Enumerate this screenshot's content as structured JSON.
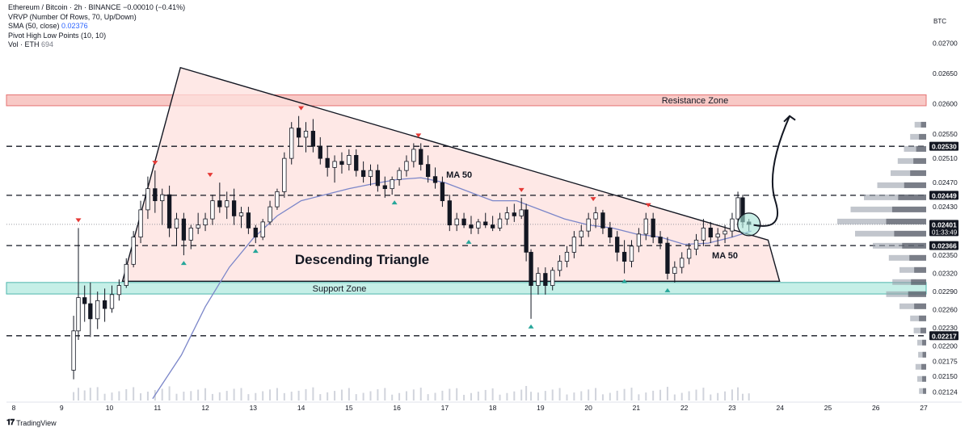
{
  "header": {
    "symbol_line": "Ethereum / Bitcoin · 2h · BINANCE",
    "change": "−0.00010 (−0.41%)",
    "indicators": [
      {
        "label": "VRVP (Number Of Rows, 70, Up/Down)",
        "value": ""
      },
      {
        "label": "SMA (50, close)",
        "value": "0.02376"
      },
      {
        "label": "Pivot High Low Points (10, 10)",
        "value": ""
      },
      {
        "label": "Vol · ETH",
        "value": "694"
      }
    ]
  },
  "currency_label": "BTC",
  "branding": "TradingView",
  "colors": {
    "up": "#131722",
    "down": "#131722",
    "triangle_fill": "#fde0de",
    "resistance_fill": "#f8c9c6",
    "support_fill": "#c5efe7",
    "ma_line": "#7b86c9",
    "pivot_high": "#e53935",
    "pivot_low": "#26a69a"
  },
  "chart_data": {
    "type": "candlestick",
    "title": "",
    "x_axis": {
      "ticks": [
        "8",
        "9",
        "10",
        "11",
        "12",
        "13",
        "14",
        "15",
        "16",
        "17",
        "18",
        "19",
        "20",
        "21",
        "22",
        "23",
        "24",
        "25",
        "26",
        "27"
      ],
      "range": [
        8,
        27
      ]
    },
    "y_axis": {
      "range": [
        0.0211,
        0.02745
      ],
      "scale": "linear",
      "ticks": [
        "0.02700",
        "0.02650",
        "0.02600",
        "0.02550",
        "0.02510",
        "0.02470",
        "0.02430",
        "0.02390",
        "0.02350",
        "0.02320",
        "0.02290",
        "0.02260",
        "0.02230",
        "0.02200",
        "0.02175",
        "0.02150",
        "0.02124"
      ]
    },
    "price_labels": [
      {
        "value": 0.0253,
        "text": "0.02530",
        "style": "dark"
      },
      {
        "value": 0.02449,
        "text": "0.02449",
        "style": "dark"
      },
      {
        "value": 0.02401,
        "text": "0.02401",
        "style": "dark",
        "sub": "01:33:49"
      },
      {
        "value": 0.02366,
        "text": "0.02366",
        "style": "dark"
      },
      {
        "value": 0.02217,
        "text": "0.02217",
        "style": "dark"
      }
    ],
    "horizontal_levels": [
      0.0253,
      0.02449,
      0.02366,
      0.02217
    ],
    "current_price": 0.02401,
    "zones": [
      {
        "label": "Resistance Zone",
        "from": 0.02597,
        "to": 0.02615
      },
      {
        "label": "Support Zone",
        "from": 0.02286,
        "to": 0.02305
      }
    ],
    "pattern": {
      "label": "Descending Triangle",
      "points": [
        {
          "x": 10.27,
          "y": 0.02307
        },
        {
          "x": 11.48,
          "y": 0.0266
        },
        {
          "x": 23.75,
          "y": 0.02375
        },
        {
          "x": 23.99,
          "y": 0.02307
        }
      ]
    },
    "ma_labels": [
      {
        "text": "MA 50",
        "x": 17.3,
        "y": 0.02478
      },
      {
        "text": "MA 50",
        "x": 22.85,
        "y": 0.02345
      }
    ],
    "projection": [
      {
        "x": 23.45,
        "y": 0.024
      },
      {
        "x": 23.9,
        "y": 0.0244
      },
      {
        "x": 24.2,
        "y": 0.0258
      }
    ],
    "sma50": [
      {
        "x": 10.9,
        "y": 0.02113
      },
      {
        "x": 11.5,
        "y": 0.02185
      },
      {
        "x": 12.0,
        "y": 0.02265
      },
      {
        "x": 12.5,
        "y": 0.0233
      },
      {
        "x": 13.0,
        "y": 0.02378
      },
      {
        "x": 13.5,
        "y": 0.02415
      },
      {
        "x": 14.0,
        "y": 0.0244
      },
      {
        "x": 14.5,
        "y": 0.0245
      },
      {
        "x": 15.0,
        "y": 0.0246
      },
      {
        "x": 15.5,
        "y": 0.02468
      },
      {
        "x": 16.0,
        "y": 0.02475
      },
      {
        "x": 16.5,
        "y": 0.02478
      },
      {
        "x": 17.0,
        "y": 0.0247
      },
      {
        "x": 17.5,
        "y": 0.02455
      },
      {
        "x": 18.0,
        "y": 0.0244
      },
      {
        "x": 18.5,
        "y": 0.0244
      },
      {
        "x": 19.0,
        "y": 0.02425
      },
      {
        "x": 19.5,
        "y": 0.0241
      },
      {
        "x": 20.0,
        "y": 0.024
      },
      {
        "x": 20.5,
        "y": 0.02395
      },
      {
        "x": 21.0,
        "y": 0.02385
      },
      {
        "x": 21.5,
        "y": 0.0238
      },
      {
        "x": 22.0,
        "y": 0.02368
      },
      {
        "x": 22.5,
        "y": 0.0237
      },
      {
        "x": 23.0,
        "y": 0.0238
      },
      {
        "x": 23.4,
        "y": 0.0239
      }
    ],
    "candles": [
      {
        "x": 9.25,
        "o": 0.0216,
        "h": 0.0225,
        "l": 0.02145,
        "c": 0.02225
      },
      {
        "x": 9.35,
        "o": 0.02225,
        "h": 0.02395,
        "l": 0.0221,
        "c": 0.0228
      },
      {
        "x": 9.48,
        "o": 0.0228,
        "h": 0.023,
        "l": 0.0224,
        "c": 0.0227
      },
      {
        "x": 9.6,
        "o": 0.0227,
        "h": 0.02305,
        "l": 0.02215,
        "c": 0.02245
      },
      {
        "x": 9.75,
        "o": 0.02245,
        "h": 0.0229,
        "l": 0.02228,
        "c": 0.02275
      },
      {
        "x": 9.9,
        "o": 0.02275,
        "h": 0.02295,
        "l": 0.0224,
        "c": 0.02262
      },
      {
        "x": 10.05,
        "o": 0.02262,
        "h": 0.023,
        "l": 0.02255,
        "c": 0.02285
      },
      {
        "x": 10.2,
        "o": 0.02285,
        "h": 0.0231,
        "l": 0.02275,
        "c": 0.023
      },
      {
        "x": 10.35,
        "o": 0.023,
        "h": 0.02345,
        "l": 0.02296,
        "c": 0.02335
      },
      {
        "x": 10.5,
        "o": 0.02335,
        "h": 0.0239,
        "l": 0.0233,
        "c": 0.0238
      },
      {
        "x": 10.65,
        "o": 0.0238,
        "h": 0.0244,
        "l": 0.0237,
        "c": 0.02425
      },
      {
        "x": 10.8,
        "o": 0.02425,
        "h": 0.0248,
        "l": 0.0241,
        "c": 0.0246
      },
      {
        "x": 10.95,
        "o": 0.0246,
        "h": 0.0249,
        "l": 0.0242,
        "c": 0.0244
      },
      {
        "x": 11.1,
        "o": 0.0244,
        "h": 0.0246,
        "l": 0.024,
        "c": 0.0245
      },
      {
        "x": 11.25,
        "o": 0.0245,
        "h": 0.02465,
        "l": 0.0238,
        "c": 0.02395
      },
      {
        "x": 11.4,
        "o": 0.02395,
        "h": 0.0242,
        "l": 0.02365,
        "c": 0.0241
      },
      {
        "x": 11.55,
        "o": 0.0241,
        "h": 0.0242,
        "l": 0.0235,
        "c": 0.02375
      },
      {
        "x": 11.7,
        "o": 0.02375,
        "h": 0.024,
        "l": 0.0236,
        "c": 0.02395
      },
      {
        "x": 11.85,
        "o": 0.02395,
        "h": 0.0242,
        "l": 0.02385,
        "c": 0.024
      },
      {
        "x": 12.0,
        "o": 0.024,
        "h": 0.0242,
        "l": 0.0239,
        "c": 0.0241
      },
      {
        "x": 12.15,
        "o": 0.0241,
        "h": 0.0245,
        "l": 0.024,
        "c": 0.0244
      },
      {
        "x": 12.3,
        "o": 0.0244,
        "h": 0.0247,
        "l": 0.0242,
        "c": 0.0243
      },
      {
        "x": 12.45,
        "o": 0.0243,
        "h": 0.02455,
        "l": 0.0241,
        "c": 0.0244
      },
      {
        "x": 12.6,
        "o": 0.0244,
        "h": 0.0246,
        "l": 0.024,
        "c": 0.02415
      },
      {
        "x": 12.75,
        "o": 0.02415,
        "h": 0.0243,
        "l": 0.02395,
        "c": 0.0242
      },
      {
        "x": 12.9,
        "o": 0.0242,
        "h": 0.0243,
        "l": 0.02385,
        "c": 0.02395
      },
      {
        "x": 13.05,
        "o": 0.02395,
        "h": 0.024,
        "l": 0.0237,
        "c": 0.0238
      },
      {
        "x": 13.2,
        "o": 0.0238,
        "h": 0.0241,
        "l": 0.02375,
        "c": 0.02405
      },
      {
        "x": 13.35,
        "o": 0.02405,
        "h": 0.0244,
        "l": 0.024,
        "c": 0.0243
      },
      {
        "x": 13.5,
        "o": 0.0243,
        "h": 0.0246,
        "l": 0.02425,
        "c": 0.02455
      },
      {
        "x": 13.65,
        "o": 0.02455,
        "h": 0.0252,
        "l": 0.02445,
        "c": 0.0251
      },
      {
        "x": 13.8,
        "o": 0.0251,
        "h": 0.0257,
        "l": 0.025,
        "c": 0.0256
      },
      {
        "x": 13.95,
        "o": 0.0256,
        "h": 0.0258,
        "l": 0.0253,
        "c": 0.02545
      },
      {
        "x": 14.1,
        "o": 0.02545,
        "h": 0.0257,
        "l": 0.0252,
        "c": 0.02555
      },
      {
        "x": 14.25,
        "o": 0.02555,
        "h": 0.02575,
        "l": 0.0252,
        "c": 0.0253
      },
      {
        "x": 14.4,
        "o": 0.0253,
        "h": 0.02545,
        "l": 0.025,
        "c": 0.0251
      },
      {
        "x": 14.55,
        "o": 0.0251,
        "h": 0.0253,
        "l": 0.0248,
        "c": 0.02495
      },
      {
        "x": 14.7,
        "o": 0.02495,
        "h": 0.02515,
        "l": 0.0247,
        "c": 0.02505
      },
      {
        "x": 14.85,
        "o": 0.02505,
        "h": 0.0252,
        "l": 0.02485,
        "c": 0.025
      },
      {
        "x": 15.0,
        "o": 0.025,
        "h": 0.02525,
        "l": 0.0249,
        "c": 0.02515
      },
      {
        "x": 15.15,
        "o": 0.02515,
        "h": 0.02525,
        "l": 0.0248,
        "c": 0.0249
      },
      {
        "x": 15.3,
        "o": 0.0249,
        "h": 0.02505,
        "l": 0.0247,
        "c": 0.0248
      },
      {
        "x": 15.45,
        "o": 0.0248,
        "h": 0.025,
        "l": 0.02465,
        "c": 0.0249
      },
      {
        "x": 15.6,
        "o": 0.0249,
        "h": 0.025,
        "l": 0.02455,
        "c": 0.02465
      },
      {
        "x": 15.75,
        "o": 0.02465,
        "h": 0.0248,
        "l": 0.02445,
        "c": 0.0246
      },
      {
        "x": 15.9,
        "o": 0.0246,
        "h": 0.0248,
        "l": 0.0245,
        "c": 0.02475
      },
      {
        "x": 16.05,
        "o": 0.02475,
        "h": 0.02495,
        "l": 0.02465,
        "c": 0.0249
      },
      {
        "x": 16.2,
        "o": 0.0249,
        "h": 0.02515,
        "l": 0.0248,
        "c": 0.02505
      },
      {
        "x": 16.35,
        "o": 0.02505,
        "h": 0.02535,
        "l": 0.02495,
        "c": 0.02525
      },
      {
        "x": 16.5,
        "o": 0.02525,
        "h": 0.02535,
        "l": 0.0249,
        "c": 0.025
      },
      {
        "x": 16.65,
        "o": 0.025,
        "h": 0.02515,
        "l": 0.0247,
        "c": 0.0248
      },
      {
        "x": 16.8,
        "o": 0.0248,
        "h": 0.02495,
        "l": 0.0246,
        "c": 0.0247
      },
      {
        "x": 16.95,
        "o": 0.0247,
        "h": 0.0248,
        "l": 0.0243,
        "c": 0.0244
      },
      {
        "x": 17.1,
        "o": 0.0244,
        "h": 0.0245,
        "l": 0.0239,
        "c": 0.024
      },
      {
        "x": 17.25,
        "o": 0.024,
        "h": 0.0242,
        "l": 0.0239,
        "c": 0.0241
      },
      {
        "x": 17.4,
        "o": 0.0241,
        "h": 0.0242,
        "l": 0.02395,
        "c": 0.024
      },
      {
        "x": 17.55,
        "o": 0.024,
        "h": 0.02415,
        "l": 0.02385,
        "c": 0.02395
      },
      {
        "x": 17.7,
        "o": 0.02395,
        "h": 0.0241,
        "l": 0.02385,
        "c": 0.02405
      },
      {
        "x": 17.85,
        "o": 0.02405,
        "h": 0.0242,
        "l": 0.02395,
        "c": 0.024
      },
      {
        "x": 18.0,
        "o": 0.024,
        "h": 0.02415,
        "l": 0.0239,
        "c": 0.02395
      },
      {
        "x": 18.15,
        "o": 0.02395,
        "h": 0.0242,
        "l": 0.0239,
        "c": 0.0241
      },
      {
        "x": 18.3,
        "o": 0.0241,
        "h": 0.0243,
        "l": 0.024,
        "c": 0.0242
      },
      {
        "x": 18.45,
        "o": 0.0242,
        "h": 0.02435,
        "l": 0.02405,
        "c": 0.02415
      },
      {
        "x": 18.6,
        "o": 0.02415,
        "h": 0.02445,
        "l": 0.0241,
        "c": 0.02425
      },
      {
        "x": 18.7,
        "o": 0.02425,
        "h": 0.02435,
        "l": 0.0234,
        "c": 0.02355
      },
      {
        "x": 18.8,
        "o": 0.02355,
        "h": 0.0236,
        "l": 0.02245,
        "c": 0.023
      },
      {
        "x": 18.95,
        "o": 0.023,
        "h": 0.0233,
        "l": 0.02285,
        "c": 0.0232
      },
      {
        "x": 19.1,
        "o": 0.0232,
        "h": 0.0233,
        "l": 0.02285,
        "c": 0.023
      },
      {
        "x": 19.25,
        "o": 0.023,
        "h": 0.0233,
        "l": 0.02292,
        "c": 0.02325
      },
      {
        "x": 19.4,
        "o": 0.02325,
        "h": 0.0235,
        "l": 0.02315,
        "c": 0.0234
      },
      {
        "x": 19.55,
        "o": 0.0234,
        "h": 0.02365,
        "l": 0.0233,
        "c": 0.02355
      },
      {
        "x": 19.7,
        "o": 0.02355,
        "h": 0.0239,
        "l": 0.02345,
        "c": 0.0238
      },
      {
        "x": 19.85,
        "o": 0.0238,
        "h": 0.024,
        "l": 0.02365,
        "c": 0.0239
      },
      {
        "x": 20.0,
        "o": 0.0239,
        "h": 0.0242,
        "l": 0.0238,
        "c": 0.0241
      },
      {
        "x": 20.15,
        "o": 0.0241,
        "h": 0.0243,
        "l": 0.02395,
        "c": 0.0242
      },
      {
        "x": 20.3,
        "o": 0.0242,
        "h": 0.02425,
        "l": 0.02385,
        "c": 0.02395
      },
      {
        "x": 20.45,
        "o": 0.02395,
        "h": 0.02405,
        "l": 0.0237,
        "c": 0.0238
      },
      {
        "x": 20.6,
        "o": 0.0238,
        "h": 0.0239,
        "l": 0.0234,
        "c": 0.02355
      },
      {
        "x": 20.75,
        "o": 0.02355,
        "h": 0.02375,
        "l": 0.0232,
        "c": 0.0234
      },
      {
        "x": 20.9,
        "o": 0.0234,
        "h": 0.02375,
        "l": 0.0233,
        "c": 0.02365
      },
      {
        "x": 21.05,
        "o": 0.02365,
        "h": 0.02395,
        "l": 0.02355,
        "c": 0.02385
      },
      {
        "x": 21.2,
        "o": 0.02385,
        "h": 0.0242,
        "l": 0.02375,
        "c": 0.0241
      },
      {
        "x": 21.35,
        "o": 0.0241,
        "h": 0.0242,
        "l": 0.0237,
        "c": 0.0238
      },
      {
        "x": 21.5,
        "o": 0.0238,
        "h": 0.0239,
        "l": 0.0236,
        "c": 0.0237
      },
      {
        "x": 21.65,
        "o": 0.0237,
        "h": 0.0238,
        "l": 0.0231,
        "c": 0.0232
      },
      {
        "x": 21.8,
        "o": 0.0232,
        "h": 0.0234,
        "l": 0.02305,
        "c": 0.0233
      },
      {
        "x": 21.95,
        "o": 0.0233,
        "h": 0.02355,
        "l": 0.0232,
        "c": 0.02345
      },
      {
        "x": 22.1,
        "o": 0.02345,
        "h": 0.0237,
        "l": 0.02335,
        "c": 0.0236
      },
      {
        "x": 22.25,
        "o": 0.0236,
        "h": 0.02385,
        "l": 0.0235,
        "c": 0.02375
      },
      {
        "x": 22.4,
        "o": 0.02375,
        "h": 0.0241,
        "l": 0.02365,
        "c": 0.02395
      },
      {
        "x": 22.55,
        "o": 0.02395,
        "h": 0.02405,
        "l": 0.0237,
        "c": 0.0238
      },
      {
        "x": 22.7,
        "o": 0.0238,
        "h": 0.02395,
        "l": 0.02365,
        "c": 0.02385
      },
      {
        "x": 22.85,
        "o": 0.02385,
        "h": 0.024,
        "l": 0.0237,
        "c": 0.0239
      },
      {
        "x": 23.0,
        "o": 0.0239,
        "h": 0.0242,
        "l": 0.0238,
        "c": 0.0241
      },
      {
        "x": 23.12,
        "o": 0.0241,
        "h": 0.02455,
        "l": 0.024,
        "c": 0.02445
      },
      {
        "x": 23.22,
        "o": 0.02445,
        "h": 0.0245,
        "l": 0.02395,
        "c": 0.02405
      },
      {
        "x": 23.35,
        "o": 0.02405,
        "h": 0.0241,
        "l": 0.0239,
        "c": 0.02401
      }
    ],
    "pivots_high": [
      {
        "x": 9.35,
        "y": 0.02395
      },
      {
        "x": 10.95,
        "y": 0.0249
      },
      {
        "x": 12.1,
        "y": 0.0247
      },
      {
        "x": 14.0,
        "y": 0.0258
      },
      {
        "x": 16.45,
        "y": 0.02535
      },
      {
        "x": 18.6,
        "y": 0.02445
      },
      {
        "x": 20.1,
        "y": 0.0243
      },
      {
        "x": 21.25,
        "y": 0.0242
      }
    ],
    "pivots_low": [
      {
        "x": 11.55,
        "y": 0.0235
      },
      {
        "x": 13.05,
        "y": 0.0237
      },
      {
        "x": 15.95,
        "y": 0.0245
      },
      {
        "x": 17.5,
        "y": 0.02385
      },
      {
        "x": 18.8,
        "y": 0.02245
      },
      {
        "x": 20.75,
        "y": 0.0232
      },
      {
        "x": 21.65,
        "y": 0.02305
      }
    ],
    "volume_profile": [
      {
        "price": 0.02565,
        "vol": 0.13
      },
      {
        "price": 0.02545,
        "vol": 0.18
      },
      {
        "price": 0.02525,
        "vol": 0.25
      },
      {
        "price": 0.02505,
        "vol": 0.32
      },
      {
        "price": 0.02485,
        "vol": 0.4
      },
      {
        "price": 0.02465,
        "vol": 0.55
      },
      {
        "price": 0.02445,
        "vol": 0.7
      },
      {
        "price": 0.02425,
        "vol": 0.85
      },
      {
        "price": 0.02405,
        "vol": 1.0
      },
      {
        "price": 0.02385,
        "vol": 0.8
      },
      {
        "price": 0.02365,
        "vol": 0.6
      },
      {
        "price": 0.02345,
        "vol": 0.42
      },
      {
        "price": 0.02325,
        "vol": 0.3
      },
      {
        "price": 0.02305,
        "vol": 0.38
      },
      {
        "price": 0.02285,
        "vol": 0.45
      },
      {
        "price": 0.02265,
        "vol": 0.3
      },
      {
        "price": 0.02245,
        "vol": 0.18
      },
      {
        "price": 0.02225,
        "vol": 0.14
      },
      {
        "price": 0.02205,
        "vol": 0.1
      },
      {
        "price": 0.02185,
        "vol": 0.09
      },
      {
        "price": 0.02165,
        "vol": 0.12
      },
      {
        "price": 0.02145,
        "vol": 0.1
      },
      {
        "price": 0.02125,
        "vol": 0.08
      }
    ]
  }
}
